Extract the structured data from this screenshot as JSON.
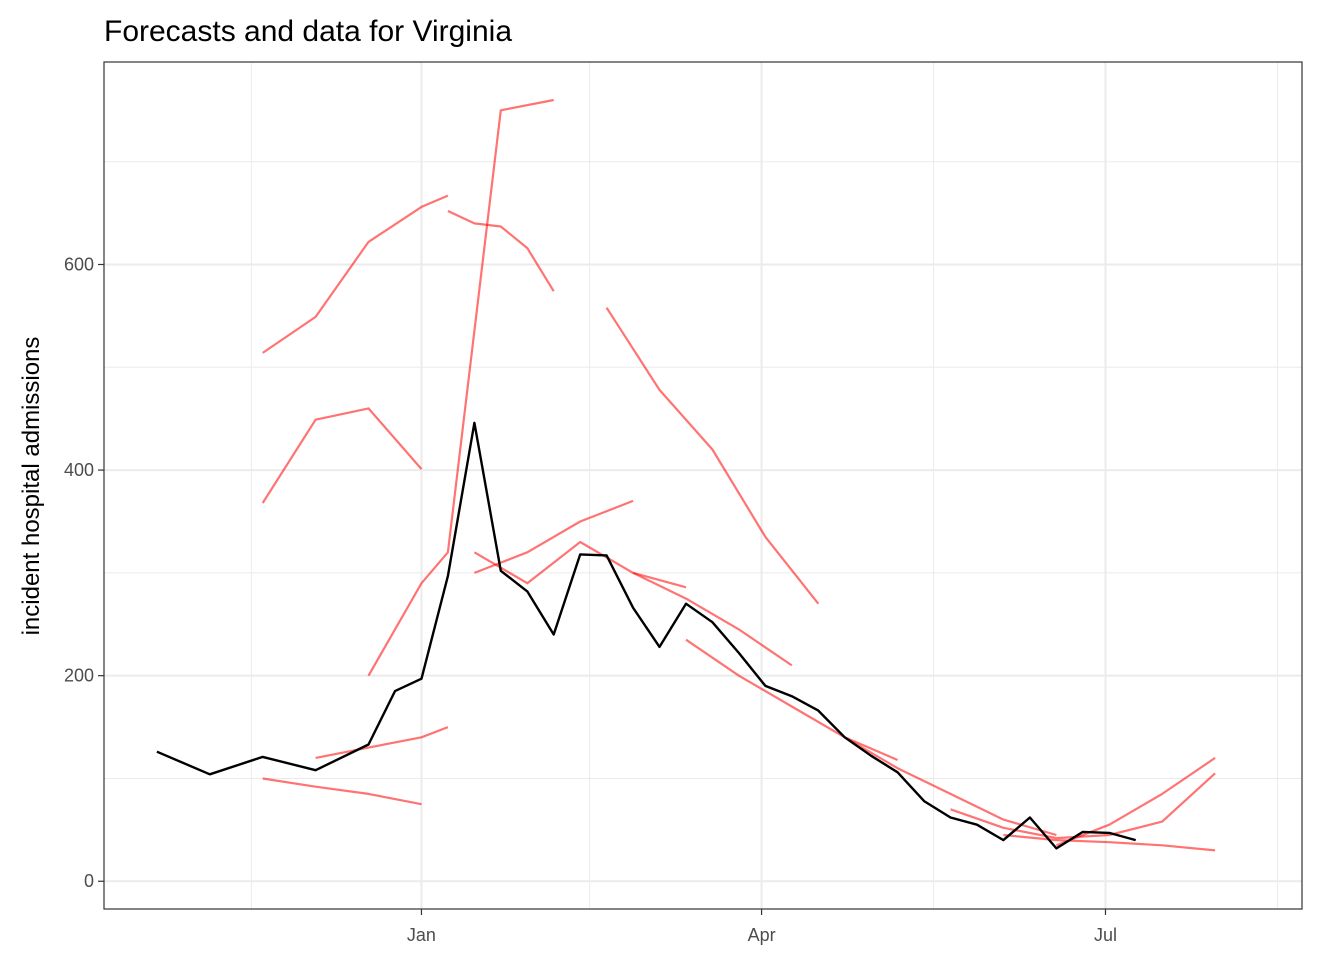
{
  "chart_data": {
    "type": "line",
    "title": "Forecasts and data for Virginia",
    "xlabel": "",
    "ylabel": "incident hospital admissions",
    "x_ticks": [
      {
        "value": "2022-01-01",
        "label": "Jan"
      },
      {
        "value": "2022-04-01",
        "label": "Apr"
      },
      {
        "value": "2022-07-01",
        "label": "Jul"
      }
    ],
    "y_ticks": [
      0,
      200,
      400,
      600
    ],
    "xlim": [
      "2021-10-09",
      "2022-08-22"
    ],
    "ylim": [
      -27,
      797
    ],
    "grid": true,
    "legend": "none",
    "colors": {
      "observed": "#000000",
      "forecast": "#ff0000",
      "grid": "#ebebeb",
      "border": "#333333"
    },
    "observed": {
      "x": [
        "2021-10-23",
        "2021-11-06",
        "2021-11-20",
        "2021-12-04",
        "2021-12-18",
        "2021-12-25",
        "2022-01-01",
        "2022-01-08",
        "2022-01-15",
        "2022-01-22",
        "2022-01-29",
        "2022-02-05",
        "2022-02-12",
        "2022-02-19",
        "2022-02-26",
        "2022-03-05",
        "2022-03-12",
        "2022-03-19",
        "2022-03-26",
        "2022-04-02",
        "2022-04-09",
        "2022-04-16",
        "2022-04-23",
        "2022-04-30",
        "2022-05-07",
        "2022-05-14",
        "2022-05-21",
        "2022-05-28",
        "2022-06-04",
        "2022-06-11",
        "2022-06-18",
        "2022-06-25",
        "2022-07-02",
        "2022-07-09"
      ],
      "y": [
        126,
        104,
        121,
        108,
        133,
        185,
        197,
        297,
        446,
        302,
        282,
        240,
        318,
        317,
        266,
        228,
        270,
        252,
        222,
        190,
        180,
        166,
        140,
        122,
        106,
        78,
        62,
        55,
        40,
        62,
        32,
        48,
        47,
        40
      ]
    },
    "forecasts": [
      {
        "x": [
          "2021-11-20",
          "2021-12-04",
          "2021-12-18",
          "2022-01-01",
          "2022-01-08"
        ],
        "y": [
          514,
          549,
          622,
          656,
          667
        ]
      },
      {
        "x": [
          "2022-01-08",
          "2022-01-15",
          "2022-01-22",
          "2022-01-29",
          "2022-02-05"
        ],
        "y": [
          652,
          640,
          637,
          616,
          574
        ]
      },
      {
        "x": [
          "2022-02-19",
          "2022-03-05",
          "2022-03-19",
          "2022-04-02",
          "2022-04-16"
        ],
        "y": [
          558,
          478,
          420,
          335,
          270
        ]
      },
      {
        "x": [
          "2021-11-20",
          "2021-12-04",
          "2021-12-18",
          "2022-01-01"
        ],
        "y": [
          368,
          449,
          460,
          401
        ]
      },
      {
        "x": [
          "2021-12-18",
          "2022-01-01",
          "2022-01-08",
          "2022-01-22",
          "2022-02-05"
        ],
        "y": [
          200,
          290,
          320,
          750,
          760
        ]
      },
      {
        "x": [
          "2022-01-15",
          "2022-01-29",
          "2022-02-12",
          "2022-02-26",
          "2022-03-12"
        ],
        "y": [
          320,
          290,
          330,
          300,
          286
        ]
      },
      {
        "x": [
          "2022-03-12",
          "2022-03-26",
          "2022-04-09",
          "2022-04-23",
          "2022-05-07"
        ],
        "y": [
          235,
          200,
          170,
          140,
          118
        ]
      },
      {
        "x": [
          "2022-04-23",
          "2022-05-07",
          "2022-05-21",
          "2022-06-04",
          "2022-06-18"
        ],
        "y": [
          140,
          110,
          85,
          60,
          45
        ]
      },
      {
        "x": [
          "2022-05-21",
          "2022-06-04",
          "2022-06-18",
          "2022-07-02",
          "2022-07-16",
          "2022-07-30"
        ],
        "y": [
          70,
          52,
          42,
          45,
          58,
          105
        ]
      },
      {
        "x": [
          "2021-12-04",
          "2021-12-18",
          "2022-01-01",
          "2022-01-08"
        ],
        "y": [
          120,
          130,
          140,
          150
        ]
      },
      {
        "x": [
          "2021-11-20",
          "2021-12-04",
          "2021-12-18",
          "2022-01-01"
        ],
        "y": [
          100,
          92,
          85,
          75
        ]
      },
      {
        "x": [
          "2022-01-15",
          "2022-01-29",
          "2022-02-12",
          "2022-02-26"
        ],
        "y": [
          300,
          320,
          350,
          370
        ]
      },
      {
        "x": [
          "2022-02-26",
          "2022-03-12",
          "2022-03-26",
          "2022-04-09"
        ],
        "y": [
          300,
          275,
          245,
          210
        ]
      },
      {
        "x": [
          "2022-06-04",
          "2022-06-18",
          "2022-07-02",
          "2022-07-16",
          "2022-07-30"
        ],
        "y": [
          45,
          40,
          38,
          35,
          30
        ]
      },
      {
        "x": [
          "2022-06-18",
          "2022-07-02",
          "2022-07-16",
          "2022-07-30"
        ],
        "y": [
          35,
          55,
          85,
          120
        ]
      }
    ]
  }
}
